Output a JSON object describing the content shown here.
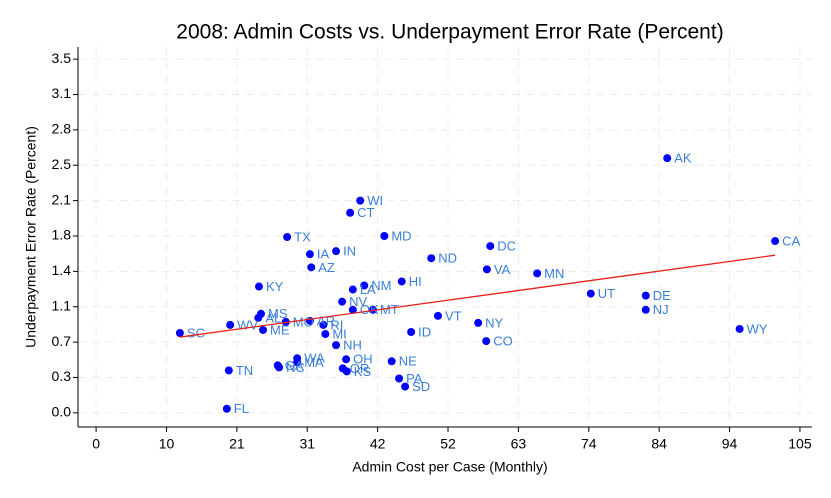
{
  "chart_data": {
    "type": "scatter",
    "title": "2008: Admin Costs vs. Underpayment Error Rate (Percent)",
    "x_label": "Admin Cost per Case (Monthly)",
    "y_label": "Underpayment Error Rate (Percent)",
    "color": "#0000ff",
    "point_labels": [
      "AK",
      "CA",
      "WY",
      "NJ",
      "DE",
      "UT",
      "MN",
      "VA",
      "DC",
      "ND",
      "NY",
      "CO",
      "VT",
      "ID",
      "HI",
      "WI",
      "CT",
      "MD",
      "IN",
      "IA",
      "TX",
      "AZ",
      "KY",
      "NM",
      "LA",
      "NV",
      "MT",
      "OK",
      "RI",
      "MI",
      "AR",
      "MS",
      "AL",
      "MO",
      "ME",
      "WV",
      "SC",
      "NH",
      "OH",
      "NE",
      "WA",
      "MA",
      "GA",
      "NC",
      "TN",
      "OR",
      "KS",
      "PA",
      "SD",
      "FL"
    ],
    "x": [
      85.2,
      101.3,
      96.0,
      82.0,
      82.0,
      73.8,
      65.8,
      58.3,
      58.8,
      50.0,
      57.0,
      58.2,
      51.0,
      47.0,
      45.6,
      39.4,
      37.9,
      43.0,
      35.8,
      31.9,
      28.5,
      32.1,
      24.3,
      40.0,
      38.3,
      36.7,
      41.3,
      38.3,
      33.9,
      34.2,
      31.9,
      24.6,
      24.2,
      28.3,
      24.9,
      20.0,
      12.5,
      35.8,
      37.3,
      44.1,
      30.0,
      30.0,
      27.1,
      27.3,
      19.8,
      36.8,
      37.4,
      45.2,
      46.1,
      19.5
    ],
    "values": [
      2.52,
      1.7,
      0.83,
      1.02,
      1.16,
      1.18,
      1.38,
      1.42,
      1.65,
      1.53,
      0.89,
      0.71,
      0.96,
      0.8,
      1.3,
      2.1,
      1.98,
      1.75,
      1.6,
      1.57,
      1.74,
      1.44,
      1.25,
      1.26,
      1.22,
      1.1,
      1.02,
      1.02,
      0.87,
      0.78,
      0.91,
      0.98,
      0.94,
      0.9,
      0.82,
      0.87,
      0.79,
      0.67,
      0.53,
      0.51,
      0.54,
      0.5,
      0.47,
      0.45,
      0.42,
      0.44,
      0.41,
      0.34,
      0.26,
      0.04
    ],
    "fit": {
      "x": [
        12.5,
        101.3
      ],
      "values": [
        0.75,
        1.56
      ],
      "color": "#e8201a"
    },
    "xlim": [
      -2.7,
      106.8
    ],
    "ylim": [
      -0.14,
      3.62
    ],
    "xticks": [
      0,
      {
        "value": 10.5,
        "label": "10"
      },
      21,
      {
        "value": 31.5,
        "label": "31"
      },
      42,
      {
        "value": 52.5,
        "label": "52"
      },
      63,
      {
        "value": 73.5,
        "label": "74"
      },
      84,
      {
        "value": 94.5,
        "label": "94"
      },
      105
    ],
    "yticks": [
      {
        "value": 0,
        "label": "0.0"
      },
      {
        "value": 0.35,
        "label": "0.3"
      },
      0.7,
      {
        "value": 1.05,
        "label": "1.1"
      },
      1.4,
      {
        "value": 1.75,
        "label": "1.8"
      },
      2.1,
      {
        "value": 2.45,
        "label": "2.5"
      },
      2.8,
      {
        "value": 3.15,
        "label": "3.1"
      },
      3.5
    ],
    "grid": true
  }
}
